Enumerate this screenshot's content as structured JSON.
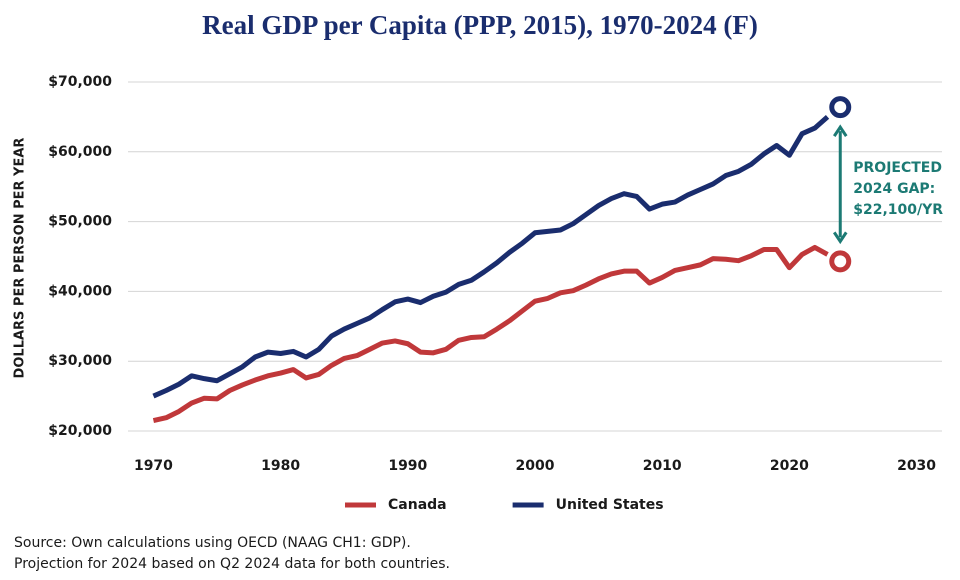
{
  "chart_data": {
    "type": "line",
    "title": "Real GDP per Capita (PPP, 2015), 1970-2024 (F)",
    "y_label": "DOLLARS PER PERSON PER YEAR",
    "x": [
      1970,
      1971,
      1972,
      1973,
      1974,
      1975,
      1976,
      1977,
      1978,
      1979,
      1980,
      1981,
      1982,
      1983,
      1984,
      1985,
      1986,
      1987,
      1988,
      1989,
      1990,
      1991,
      1992,
      1993,
      1994,
      1995,
      1996,
      1997,
      1998,
      1999,
      2000,
      2001,
      2002,
      2003,
      2004,
      2005,
      2006,
      2007,
      2008,
      2009,
      2010,
      2011,
      2012,
      2013,
      2014,
      2015,
      2016,
      2017,
      2018,
      2019,
      2020,
      2021,
      2022,
      2023,
      2024
    ],
    "projection_x": 2024,
    "series": [
      {
        "name": "Canada",
        "color": "#c0383a",
        "values": [
          21500,
          21900,
          22800,
          24000,
          24700,
          24600,
          25800,
          26600,
          27300,
          27900,
          28300,
          28800,
          27600,
          28100,
          29400,
          30400,
          30800,
          31700,
          32600,
          32900,
          32500,
          31300,
          31200,
          31700,
          33000,
          33400,
          33500,
          34600,
          35800,
          37200,
          38600,
          39000,
          39800,
          40100,
          40900,
          41800,
          42500,
          42900,
          42900,
          41200,
          42000,
          43000,
          43400,
          43800,
          44700,
          44600,
          44400,
          45100,
          46000,
          46000,
          43400,
          45300,
          46300,
          45300,
          null
        ],
        "projection": 44300
      },
      {
        "name": "United States",
        "color": "#1a2d6e",
        "values": [
          25000,
          25800,
          26700,
          27900,
          27500,
          27200,
          28200,
          29200,
          30600,
          31300,
          31100,
          31400,
          30600,
          31700,
          33600,
          34600,
          35400,
          36200,
          37400,
          38500,
          38900,
          38400,
          39300,
          39900,
          41000,
          41600,
          42800,
          44100,
          45600,
          46900,
          48400,
          48600,
          48800,
          49700,
          51000,
          52300,
          53300,
          54000,
          53600,
          51800,
          52500,
          52800,
          53800,
          54600,
          55400,
          56600,
          57200,
          58200,
          59700,
          60900,
          59500,
          62600,
          63400,
          65000,
          null
        ],
        "projection": 66400
      }
    ],
    "annotation": [
      "PROJECTED",
      "2024 GAP:",
      "$22,100/YR"
    ],
    "annotation_color": "#1c7a74",
    "xlim": [
      1968,
      2032
    ],
    "xticks": [
      1970,
      1980,
      1990,
      2000,
      2010,
      2020,
      2030
    ],
    "ylim": [
      20000,
      70000
    ],
    "yticks": [
      {
        "value": 20000,
        "label": "$20,000"
      },
      {
        "value": 30000,
        "label": "$30,000"
      },
      {
        "value": 40000,
        "label": "$40,000"
      },
      {
        "value": 50000,
        "label": "$50,000"
      },
      {
        "value": 60000,
        "label": "$60,000"
      },
      {
        "value": 70000,
        "label": "$70,000"
      }
    ],
    "grid": true,
    "source": [
      "Source: Own calculations using OECD (NAAG CH1: GDP).",
      "Projection for 2024 based on Q2 2024 data for both countries."
    ]
  }
}
